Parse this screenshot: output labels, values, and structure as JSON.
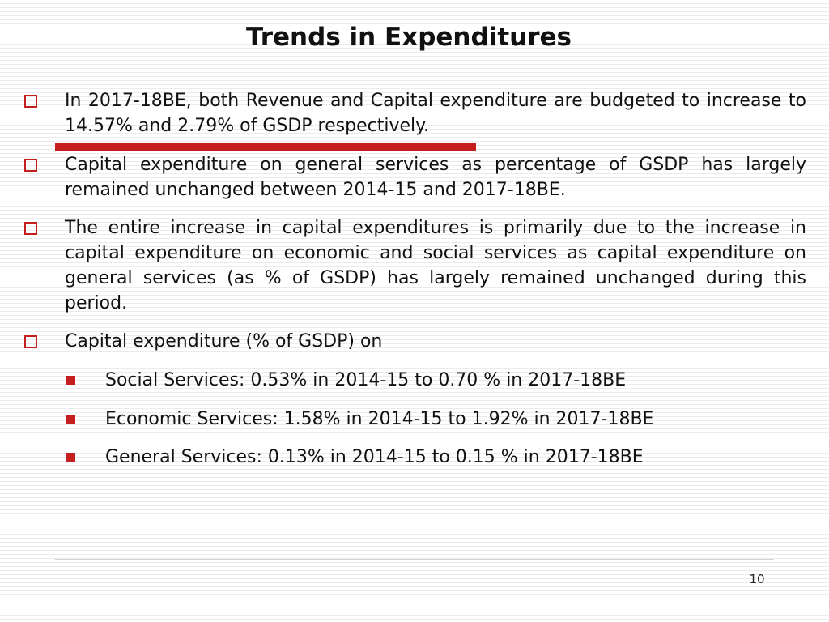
{
  "slide": {
    "title": "Trends in Expenditures",
    "bullets": [
      "In 2017-18BE, both Revenue and Capital expenditure are budgeted to increase to 14.57% and 2.79% of GSDP respectively.",
      "Capital expenditure on general services as percentage of GSDP has largely remained unchanged between 2014-15 and 2017-18BE.",
      "The entire increase in capital expenditures is primarily due to the increase in capital expenditure on economic and social services as capital expenditure on general services (as % of GSDP) has largely remained unchanged during this period.",
      "Capital expenditure (% of GSDP) on"
    ],
    "sub_bullets": [
      "Social Services: 0.53% in 2014-15 to 0.70 % in 2017-18BE",
      "Economic Services: 1.58% in 2014-15 to 1.92% in 2017-18BE",
      "General Services: 0.13% in 2014-15 to 0.15 % in 2017-18BE"
    ],
    "page_number": "10"
  },
  "theme": {
    "accent_color": "#c41e1e",
    "bullet_marker_icon": "hollow-square-icon",
    "sub_bullet_marker_icon": "filled-square-icon"
  }
}
